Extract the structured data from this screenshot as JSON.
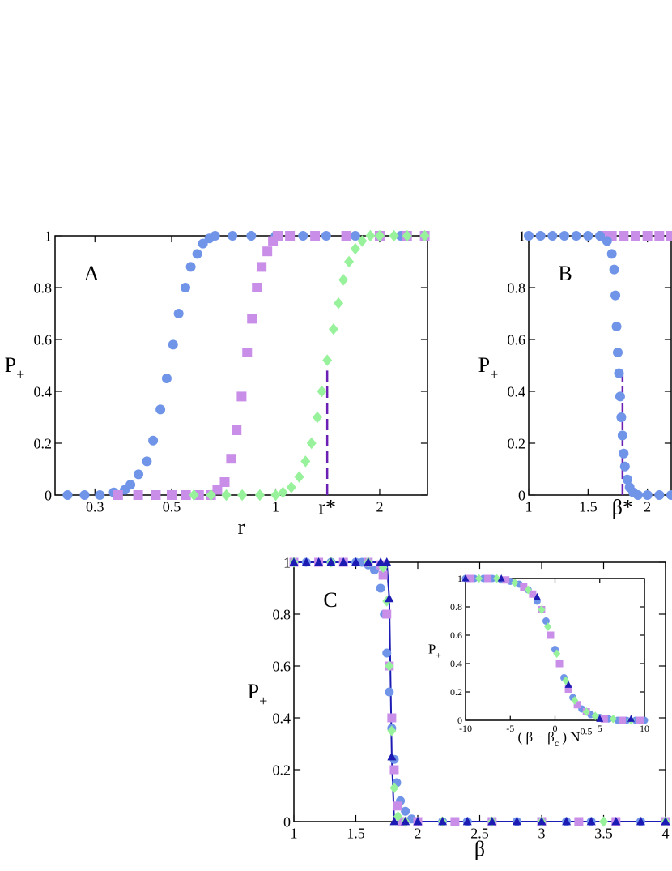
{
  "chart_data": [
    {
      "type": "scatter",
      "panel_label": "A",
      "xlabel": "r",
      "ylabel": {
        "text": "P",
        "subscript": "+"
      },
      "log_x": true,
      "xlim": [
        0.23,
        2.75
      ],
      "xticks": [
        0.3,
        0.5,
        1,
        2
      ],
      "ylim": [
        0,
        1
      ],
      "yticks": [
        0,
        0.2,
        0.4,
        0.6,
        0.8,
        1
      ],
      "grid": false,
      "annotation": {
        "text": "r*",
        "x": 1.41,
        "y_end": 0.48,
        "color": "#6b1fb3"
      },
      "series": [
        {
          "color": "#6f94e8",
          "marker": "circle",
          "x": [
            0.25,
            0.28,
            0.31,
            0.34,
            0.366,
            0.38,
            0.401,
            0.424,
            0.442,
            0.464,
            0.484,
            0.505,
            0.524,
            0.548,
            0.568,
            0.593,
            0.616,
            0.643,
            0.668,
            0.75,
            0.85,
            1,
            1.2,
            1.4,
            1.7,
            2,
            2.3,
            2.7
          ],
          "values": [
            0,
            0,
            0,
            0.01,
            0.02,
            0.04,
            0.08,
            0.13,
            0.21,
            0.33,
            0.45,
            0.58,
            0.7,
            0.8,
            0.88,
            0.93,
            0.97,
            0.99,
            1,
            1,
            1,
            1,
            1,
            1,
            1,
            1,
            1,
            1
          ]
        },
        {
          "color": "#c98fe8",
          "marker": "square",
          "x": [
            0.35,
            0.4,
            0.45,
            0.5,
            0.55,
            0.6,
            0.65,
            0.678,
            0.712,
            0.743,
            0.771,
            0.797,
            0.827,
            0.854,
            0.882,
            0.911,
            0.946,
            0.982,
            1.014,
            1.1,
            1.3,
            1.6,
            2,
            2.4,
            2.7
          ],
          "values": [
            0,
            0,
            0,
            0,
            0,
            0,
            0,
            0.02,
            0.05,
            0.14,
            0.25,
            0.38,
            0.55,
            0.68,
            0.8,
            0.88,
            0.94,
            0.98,
            1,
            1,
            1,
            1,
            1,
            1,
            1
          ]
        },
        {
          "color": "#98f29c",
          "marker": "diamond",
          "x": [
            0.58,
            0.65,
            0.72,
            0.8,
            0.9,
            1,
            1.05,
            1.11,
            1.17,
            1.22,
            1.27,
            1.32,
            1.36,
            1.41,
            1.47,
            1.52,
            1.57,
            1.63,
            1.7,
            1.78,
            1.88,
            2,
            2.2,
            2.4,
            2.7
          ],
          "values": [
            0,
            0,
            0,
            0,
            0,
            0,
            0.01,
            0.03,
            0.07,
            0.13,
            0.2,
            0.3,
            0.4,
            0.52,
            0.64,
            0.74,
            0.83,
            0.9,
            0.95,
            0.98,
            1,
            1,
            1,
            1,
            1
          ]
        }
      ]
    },
    {
      "type": "scatter",
      "panel_label": "B",
      "ylabel": {
        "text": "P",
        "subscript": "+"
      },
      "log_x": false,
      "xlim": [
        1,
        2.2
      ],
      "xticks": [
        1,
        1.5,
        2
      ],
      "ylim": [
        0,
        1
      ],
      "yticks": [
        0,
        0.2,
        0.4,
        0.6,
        0.8,
        1
      ],
      "grid": false,
      "annotation": {
        "text": "β*",
        "x": 1.79,
        "y_end": 0.47,
        "color": "#6b1fb3"
      },
      "series": [
        {
          "color": "#c98fe8",
          "marker": "square",
          "x": [
            1.62,
            1.7,
            1.8,
            1.9,
            2,
            2.1,
            2.2
          ],
          "values": [
            1,
            1,
            1,
            1,
            1,
            1,
            1
          ]
        },
        {
          "color": "#6f94e8",
          "marker": "circle",
          "x": [
            1,
            1.1,
            1.2,
            1.3,
            1.4,
            1.5,
            1.6,
            1.66,
            1.7,
            1.72,
            1.73,
            1.74,
            1.75,
            1.76,
            1.77,
            1.78,
            1.79,
            1.8,
            1.81,
            1.83,
            1.85,
            1.88,
            1.92,
            2,
            2.1,
            2.2
          ],
          "values": [
            1,
            1,
            1,
            1,
            1,
            1,
            1,
            0.98,
            0.93,
            0.87,
            0.77,
            0.65,
            0.55,
            0.47,
            0.38,
            0.3,
            0.23,
            0.16,
            0.11,
            0.06,
            0.03,
            0.01,
            0,
            0,
            0,
            0
          ]
        }
      ]
    },
    {
      "type": "scatter",
      "panel_label": "C",
      "xlabel": "β",
      "ylabel": {
        "text": "P",
        "subscript": "+"
      },
      "log_x": false,
      "xlim": [
        1,
        4
      ],
      "xticks": [
        1,
        1.5,
        2,
        2.5,
        3,
        3.5,
        4
      ],
      "ylim": [
        0,
        1
      ],
      "yticks": [
        0,
        0.2,
        0.4,
        0.6,
        0.8,
        1
      ],
      "grid": false,
      "series": [
        {
          "color": "#6f94e8",
          "marker": "circle",
          "x": [
            1,
            1.1,
            1.2,
            1.3,
            1.4,
            1.5,
            1.55,
            1.6,
            1.65,
            1.7,
            1.73,
            1.75,
            1.77,
            1.79,
            1.81,
            1.83,
            1.86,
            1.9,
            1.95,
            2,
            2.2,
            2.4,
            2.6,
            2.8,
            3,
            3.2,
            3.4,
            3.6,
            3.8,
            4
          ],
          "values": [
            1,
            1,
            1,
            1,
            1,
            1,
            1,
            0.99,
            0.97,
            0.9,
            0.8,
            0.65,
            0.5,
            0.36,
            0.24,
            0.15,
            0.08,
            0.04,
            0.01,
            0,
            0,
            0,
            0,
            0,
            0,
            0,
            0,
            0,
            0,
            0
          ]
        },
        {
          "color": "#c98fe8",
          "marker": "square",
          "x": [
            1,
            1.2,
            1.4,
            1.6,
            1.7,
            1.72,
            1.75,
            1.77,
            1.79,
            1.81,
            1.84,
            1.88,
            2,
            2.3,
            2.6,
            3,
            3.3,
            3.6,
            4
          ],
          "values": [
            1,
            1,
            1,
            1,
            0.99,
            0.95,
            0.8,
            0.6,
            0.4,
            0.2,
            0.06,
            0,
            0,
            0,
            0,
            0,
            0,
            0,
            0
          ]
        },
        {
          "color": "#98f29c",
          "marker": "diamond",
          "x": [
            1,
            1.3,
            1.6,
            1.72,
            1.75,
            1.77,
            1.79,
            1.81,
            1.84,
            1.9,
            2.2,
            2.6,
            3,
            3.5,
            4
          ],
          "values": [
            1,
            1,
            1,
            0.98,
            0.85,
            0.6,
            0.35,
            0.13,
            0.02,
            0,
            0,
            0,
            0,
            0,
            0
          ]
        },
        {
          "color": "#1c1cb4",
          "marker": "triangle",
          "line": true,
          "x": [
            1,
            1.1,
            1.2,
            1.3,
            1.4,
            1.5,
            1.6,
            1.7,
            1.75,
            1.77,
            1.79,
            1.81,
            1.9,
            2,
            2.2,
            2.4,
            2.6,
            2.8,
            3,
            3.2,
            3.4,
            3.6,
            3.8,
            4
          ],
          "values": [
            1,
            1,
            1,
            1,
            1,
            1,
            1,
            1,
            1,
            0.86,
            0.25,
            0,
            0,
            0,
            0,
            0,
            0,
            0,
            0,
            0,
            0,
            0,
            0,
            0
          ]
        }
      ]
    },
    {
      "type": "scatter",
      "xlabel": {
        "text": "( β − β",
        "subscript": "c",
        "text2": " ) N",
        "superscript": "0.5"
      },
      "ylabel": {
        "text": "P",
        "subscript": "+"
      },
      "log_x": false,
      "xlim": [
        -10,
        10
      ],
      "xticks": [
        -10,
        -5,
        0,
        5,
        10
      ],
      "ylim": [
        0,
        1
      ],
      "yticks": [
        0,
        0.2,
        0.4,
        0.6,
        0.8,
        1
      ],
      "grid": false,
      "series": [
        {
          "color": "#6f94e8",
          "marker": "circle",
          "x": [
            -10,
            -9,
            -8,
            -7,
            -6,
            -5,
            -4,
            -3,
            -2,
            -1,
            0,
            1,
            2,
            3,
            4,
            5,
            6,
            7,
            8,
            9,
            10
          ],
          "values": [
            1,
            1,
            1,
            1,
            0.99,
            0.98,
            0.96,
            0.92,
            0.84,
            0.7,
            0.5,
            0.3,
            0.16,
            0.08,
            0.04,
            0.02,
            0.01,
            0,
            0,
            0,
            0
          ]
        },
        {
          "color": "#c98fe8",
          "marker": "square",
          "x": [
            -9.5,
            -7.5,
            -5.5,
            -3.5,
            -2.5,
            -1.5,
            -0.5,
            0.5,
            1.5,
            2.5,
            3.5,
            5.5,
            7.5,
            9.5
          ],
          "values": [
            1,
            1,
            0.99,
            0.94,
            0.89,
            0.78,
            0.6,
            0.4,
            0.22,
            0.11,
            0.06,
            0.01,
            0,
            0
          ]
        },
        {
          "color": "#98f29c",
          "marker": "diamond",
          "x": [
            -8.5,
            -6.5,
            -4.5,
            -3,
            -1.5,
            -0.8,
            0.2,
            1.2,
            2.2,
            3.5,
            4.5,
            6.5,
            8.5
          ],
          "values": [
            1,
            1,
            0.97,
            0.92,
            0.78,
            0.66,
            0.47,
            0.28,
            0.14,
            0.06,
            0.03,
            0.01,
            0
          ]
        },
        {
          "color": "#1c1cb4",
          "marker": "triangle",
          "x": [
            -10,
            -6,
            -2,
            1.5,
            5,
            8.5
          ],
          "values": [
            1,
            1,
            0.87,
            0.25,
            0.01,
            0.01
          ]
        }
      ]
    }
  ]
}
